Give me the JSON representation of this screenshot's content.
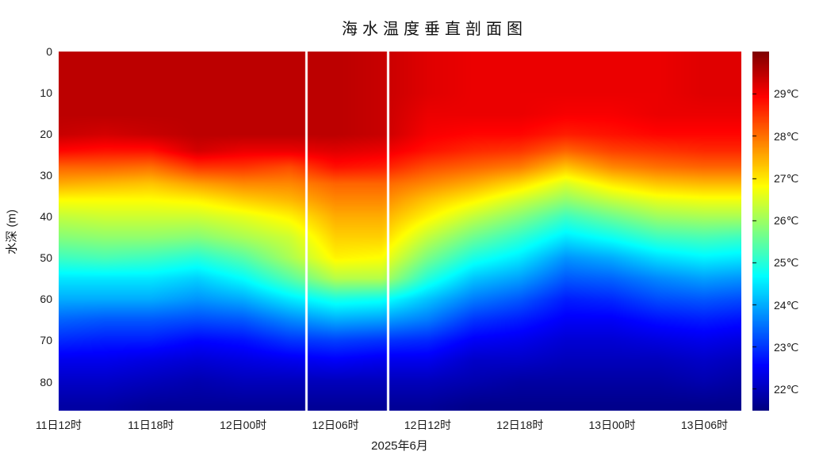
{
  "title": "海水温度垂直剖面图",
  "x_axis": {
    "label": "2025年6月",
    "ticks": [
      "11日12时",
      "11日18时",
      "12日00时",
      "12日06时",
      "12日12时",
      "12日18时",
      "13日00时",
      "13日06时"
    ],
    "tick_hours": [
      0,
      6,
      12,
      18,
      24,
      30,
      36,
      42
    ]
  },
  "y_axis": {
    "label": "水深 (m)",
    "ticks": [
      "0",
      "10",
      "20",
      "30",
      "40",
      "50",
      "60",
      "70",
      "80"
    ],
    "tick_values": [
      0,
      10,
      20,
      30,
      40,
      50,
      60,
      70,
      80
    ]
  },
  "colorbar": {
    "tick_labels": [
      "29℃",
      "28℃",
      "27℃",
      "26℃",
      "25℃",
      "24℃",
      "23℃",
      "22℃"
    ],
    "tick_values": [
      29,
      28,
      27,
      26,
      25,
      24,
      23,
      22
    ]
  },
  "chart_data": {
    "type": "heatmap",
    "title": "海水温度垂直剖面图",
    "xlabel": "2025年6月",
    "ylabel": "水深 (m)",
    "colormap": "jet",
    "clim": [
      21.5,
      30.0
    ],
    "ylim": [
      0,
      87
    ],
    "xlim_hours": [
      0,
      44.4
    ],
    "x_tick_hours": [
      0,
      6,
      12,
      18,
      24,
      30,
      36,
      42
    ],
    "x_tick_labels": [
      "11日12时",
      "11日18时",
      "12日00时",
      "12日06时",
      "12日12时",
      "12日18时",
      "13日00时",
      "13日06时"
    ],
    "vertical_lines_hours": [
      16.1,
      21.4
    ],
    "vertical_line_color": "#ffffff",
    "x_hours": [
      0,
      3,
      6,
      9,
      12,
      15,
      18,
      21,
      24,
      27,
      30,
      33,
      36,
      39,
      42,
      44.4
    ],
    "depths": [
      0,
      5,
      10,
      15,
      20,
      24,
      28,
      32,
      36,
      40,
      45,
      50,
      55,
      60,
      65,
      70,
      75,
      80,
      86
    ],
    "temperature_c": [
      [
        29.5,
        29.5,
        29.5,
        29.5,
        29.5,
        29.5,
        29.5,
        29.4,
        29.2,
        29.1,
        29.1,
        29.1,
        29.1,
        29.1,
        29.2,
        29.2
      ],
      [
        29.5,
        29.5,
        29.5,
        29.5,
        29.5,
        29.5,
        29.5,
        29.4,
        29.2,
        29.1,
        29.1,
        29.1,
        29.1,
        29.1,
        29.2,
        29.2
      ],
      [
        29.5,
        29.5,
        29.5,
        29.5,
        29.5,
        29.5,
        29.5,
        29.4,
        29.2,
        29.1,
        29.1,
        29.1,
        29.1,
        29.1,
        29.2,
        29.2
      ],
      [
        29.5,
        29.5,
        29.5,
        29.5,
        29.5,
        29.5,
        29.5,
        29.4,
        29.1,
        29.1,
        29.1,
        29.0,
        29.0,
        29.1,
        29.1,
        29.1
      ],
      [
        29.4,
        29.3,
        29.4,
        29.5,
        29.5,
        29.5,
        29.5,
        29.4,
        29.0,
        28.9,
        28.9,
        28.7,
        28.8,
        28.9,
        28.9,
        28.9
      ],
      [
        28.9,
        28.8,
        28.8,
        29.3,
        29.1,
        29.1,
        29.2,
        29.1,
        28.8,
        28.6,
        28.5,
        28.1,
        28.4,
        28.5,
        28.6,
        28.6
      ],
      [
        28.1,
        28.1,
        28.0,
        28.5,
        28.5,
        28.3,
        28.8,
        28.7,
        28.3,
        28.1,
        27.9,
        27.3,
        27.8,
        28.0,
        28.1,
        28.1
      ],
      [
        27.5,
        27.4,
        27.3,
        27.6,
        27.8,
        27.8,
        28.1,
        28.1,
        27.8,
        27.5,
        27.1,
        26.5,
        27.0,
        27.3,
        27.4,
        27.4
      ],
      [
        26.8,
        26.8,
        26.8,
        26.9,
        27.2,
        27.4,
        27.8,
        27.8,
        27.3,
        26.9,
        26.4,
        25.9,
        26.3,
        26.6,
        26.7,
        26.7
      ],
      [
        26.3,
        26.4,
        26.4,
        26.4,
        26.6,
        26.9,
        27.5,
        27.5,
        26.9,
        26.3,
        25.8,
        25.2,
        25.6,
        26.0,
        26.1,
        26.1
      ],
      [
        25.8,
        25.9,
        25.9,
        25.8,
        26.1,
        26.4,
        27.2,
        27.2,
        26.3,
        25.6,
        25.1,
        24.5,
        24.8,
        25.2,
        25.3,
        25.2
      ],
      [
        25.2,
        25.3,
        25.2,
        25.0,
        25.4,
        26.1,
        26.9,
        26.8,
        25.7,
        24.9,
        24.5,
        23.8,
        24.0,
        24.4,
        24.6,
        24.5
      ],
      [
        24.5,
        24.5,
        24.5,
        24.3,
        24.7,
        25.4,
        26.2,
        26.2,
        25.0,
        24.2,
        23.9,
        23.3,
        23.4,
        23.7,
        23.9,
        23.8
      ],
      [
        24.0,
        24.0,
        24.0,
        23.8,
        24.0,
        24.5,
        24.9,
        24.8,
        24.2,
        23.6,
        23.3,
        22.8,
        22.9,
        23.2,
        23.3,
        23.2
      ],
      [
        23.4,
        23.3,
        23.3,
        23.2,
        23.3,
        23.7,
        24.0,
        23.9,
        23.6,
        23.0,
        22.8,
        22.5,
        22.5,
        22.7,
        22.8,
        22.7
      ],
      [
        22.9,
        22.8,
        22.8,
        22.6,
        22.7,
        23.0,
        23.1,
        23.0,
        22.9,
        22.5,
        22.4,
        22.2,
        22.2,
        22.3,
        22.4,
        22.3
      ],
      [
        22.4,
        22.4,
        22.3,
        22.2,
        22.3,
        22.4,
        22.5,
        22.4,
        22.4,
        22.1,
        22.1,
        22.0,
        22.0,
        22.0,
        22.1,
        22.0
      ],
      [
        22.1,
        22.1,
        22.0,
        21.9,
        22.0,
        22.0,
        22.0,
        22.0,
        22.0,
        21.9,
        21.8,
        21.8,
        21.8,
        21.8,
        21.9,
        21.8
      ],
      [
        21.8,
        21.8,
        21.7,
        21.7,
        21.7,
        21.7,
        21.7,
        21.7,
        21.7,
        21.6,
        21.6,
        21.6,
        21.6,
        21.6,
        21.6,
        21.6
      ]
    ]
  }
}
